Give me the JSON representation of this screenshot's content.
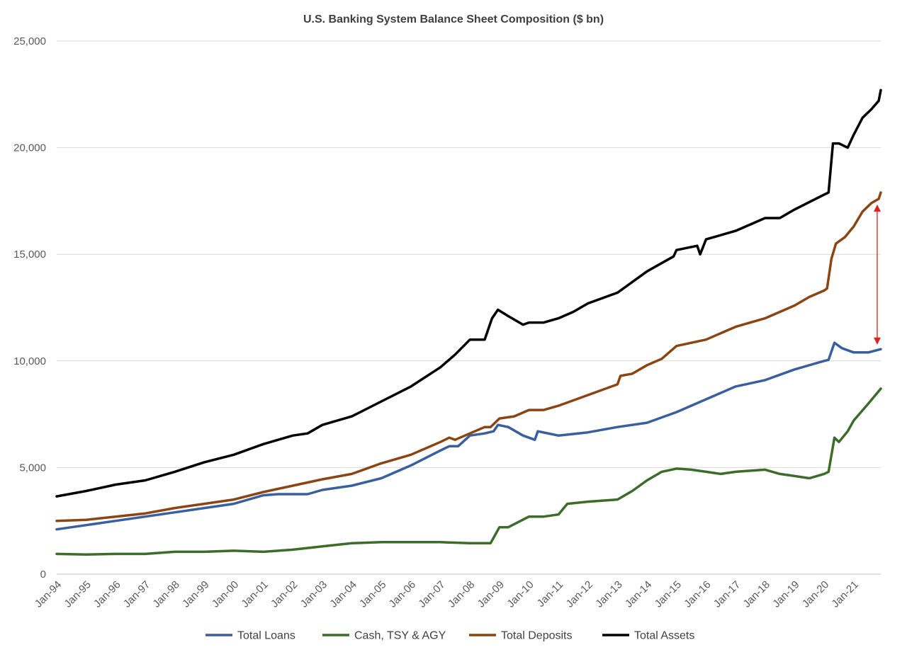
{
  "chart_data": {
    "type": "line",
    "title": "U.S. Banking System Balance Sheet Composition ($ bn)",
    "xlabel": "",
    "ylabel": "",
    "ylim": [
      0,
      25000
    ],
    "yticks": [
      0,
      5000,
      10000,
      15000,
      20000,
      25000
    ],
    "ytick_labels": [
      "0",
      "5,000",
      "10,000",
      "15,000",
      "20,000",
      "25,000"
    ],
    "xlim": [
      1994.0,
      2021.92
    ],
    "xticks": [
      1994,
      1995,
      1996,
      1997,
      1998,
      1999,
      2000,
      2001,
      2002,
      2003,
      2004,
      2005,
      2006,
      2007,
      2008,
      2009,
      2010,
      2011,
      2012,
      2013,
      2014,
      2015,
      2016,
      2017,
      2018,
      2019,
      2020,
      2021
    ],
    "xtick_labels": [
      "Jan-94",
      "Jan-95",
      "Jan-96",
      "Jan-97",
      "Jan-98",
      "Jan-99",
      "Jan-00",
      "Jan-01",
      "Jan-02",
      "Jan-03",
      "Jan-04",
      "Jan-05",
      "Jan-06",
      "Jan-07",
      "Jan-08",
      "Jan-09",
      "Jan-10",
      "Jan-11",
      "Jan-12",
      "Jan-13",
      "Jan-14",
      "Jan-15",
      "Jan-16",
      "Jan-17",
      "Jan-18",
      "Jan-19",
      "Jan-20",
      "Jan-21"
    ],
    "grid": "horizontal",
    "legend_position": "bottom",
    "annotation": {
      "type": "double-arrow",
      "x": 2021.8,
      "y_from": 17300,
      "y_to": 10800,
      "color": "#e0201b"
    },
    "series": [
      {
        "name": "Total Loans",
        "color": "#3a5f9e",
        "points": [
          [
            1994.0,
            2100
          ],
          [
            1995.0,
            2300
          ],
          [
            1996.0,
            2500
          ],
          [
            1997.0,
            2700
          ],
          [
            1998.0,
            2900
          ],
          [
            1999.0,
            3100
          ],
          [
            2000.0,
            3300
          ],
          [
            2001.0,
            3700
          ],
          [
            2001.5,
            3750
          ],
          [
            2002.0,
            3750
          ],
          [
            2002.5,
            3750
          ],
          [
            2003.0,
            3950
          ],
          [
            2004.0,
            4150
          ],
          [
            2005.0,
            4500
          ],
          [
            2006.0,
            5100
          ],
          [
            2007.0,
            5800
          ],
          [
            2007.3,
            6000
          ],
          [
            2007.6,
            6000
          ],
          [
            2008.0,
            6500
          ],
          [
            2008.5,
            6600
          ],
          [
            2008.8,
            6700
          ],
          [
            2008.95,
            7000
          ],
          [
            2009.3,
            6900
          ],
          [
            2009.8,
            6500
          ],
          [
            2010.2,
            6300
          ],
          [
            2010.3,
            6700
          ],
          [
            2011.0,
            6500
          ],
          [
            2012.0,
            6650
          ],
          [
            2013.0,
            6900
          ],
          [
            2014.0,
            7100
          ],
          [
            2015.0,
            7600
          ],
          [
            2016.0,
            8200
          ],
          [
            2017.0,
            8800
          ],
          [
            2018.0,
            9100
          ],
          [
            2019.0,
            9600
          ],
          [
            2020.0,
            10000
          ],
          [
            2020.15,
            10050
          ],
          [
            2020.35,
            10850
          ],
          [
            2020.6,
            10600
          ],
          [
            2021.0,
            10400
          ],
          [
            2021.5,
            10400
          ],
          [
            2021.92,
            10550
          ]
        ]
      },
      {
        "name": "Cash, TSY & AGY",
        "color": "#3d6b2a",
        "points": [
          [
            1994.0,
            950
          ],
          [
            1995.0,
            920
          ],
          [
            1996.0,
            950
          ],
          [
            1997.0,
            950
          ],
          [
            1998.0,
            1050
          ],
          [
            1999.0,
            1050
          ],
          [
            2000.0,
            1100
          ],
          [
            2001.0,
            1050
          ],
          [
            2002.0,
            1150
          ],
          [
            2003.0,
            1300
          ],
          [
            2004.0,
            1450
          ],
          [
            2005.0,
            1500
          ],
          [
            2006.0,
            1500
          ],
          [
            2007.0,
            1500
          ],
          [
            2008.0,
            1450
          ],
          [
            2008.7,
            1450
          ],
          [
            2009.0,
            2200
          ],
          [
            2009.3,
            2200
          ],
          [
            2010.0,
            2700
          ],
          [
            2010.5,
            2700
          ],
          [
            2011.0,
            2800
          ],
          [
            2011.3,
            3300
          ],
          [
            2012.0,
            3400
          ],
          [
            2012.5,
            3450
          ],
          [
            2013.0,
            3500
          ],
          [
            2013.5,
            3900
          ],
          [
            2014.0,
            4400
          ],
          [
            2014.5,
            4800
          ],
          [
            2015.0,
            4950
          ],
          [
            2015.5,
            4900
          ],
          [
            2016.0,
            4800
          ],
          [
            2016.5,
            4700
          ],
          [
            2017.0,
            4800
          ],
          [
            2017.5,
            4850
          ],
          [
            2018.0,
            4900
          ],
          [
            2018.5,
            4700
          ],
          [
            2019.0,
            4600
          ],
          [
            2019.5,
            4500
          ],
          [
            2020.0,
            4700
          ],
          [
            2020.15,
            4800
          ],
          [
            2020.35,
            6400
          ],
          [
            2020.5,
            6200
          ],
          [
            2020.8,
            6700
          ],
          [
            2021.0,
            7200
          ],
          [
            2021.5,
            8000
          ],
          [
            2021.92,
            8700
          ]
        ]
      },
      {
        "name": "Total Deposits",
        "color": "#8b4513",
        "points": [
          [
            1994.0,
            2500
          ],
          [
            1995.0,
            2550
          ],
          [
            1996.0,
            2700
          ],
          [
            1997.0,
            2850
          ],
          [
            1998.0,
            3100
          ],
          [
            1999.0,
            3300
          ],
          [
            2000.0,
            3500
          ],
          [
            2001.0,
            3850
          ],
          [
            2002.0,
            4150
          ],
          [
            2003.0,
            4450
          ],
          [
            2004.0,
            4700
          ],
          [
            2005.0,
            5200
          ],
          [
            2006.0,
            5600
          ],
          [
            2007.0,
            6200
          ],
          [
            2007.3,
            6400
          ],
          [
            2007.5,
            6300
          ],
          [
            2008.0,
            6600
          ],
          [
            2008.5,
            6900
          ],
          [
            2008.7,
            6900
          ],
          [
            2009.0,
            7300
          ],
          [
            2009.5,
            7400
          ],
          [
            2010.0,
            7700
          ],
          [
            2010.5,
            7700
          ],
          [
            2011.0,
            7900
          ],
          [
            2012.0,
            8400
          ],
          [
            2013.0,
            8900
          ],
          [
            2013.1,
            9300
          ],
          [
            2013.5,
            9400
          ],
          [
            2014.0,
            9800
          ],
          [
            2014.5,
            10100
          ],
          [
            2015.0,
            10700
          ],
          [
            2016.0,
            11000
          ],
          [
            2017.0,
            11600
          ],
          [
            2018.0,
            12000
          ],
          [
            2019.0,
            12600
          ],
          [
            2019.5,
            13000
          ],
          [
            2020.0,
            13300
          ],
          [
            2020.1,
            13400
          ],
          [
            2020.25,
            14800
          ],
          [
            2020.4,
            15500
          ],
          [
            2020.7,
            15800
          ],
          [
            2021.0,
            16300
          ],
          [
            2021.3,
            17000
          ],
          [
            2021.6,
            17400
          ],
          [
            2021.85,
            17600
          ],
          [
            2021.92,
            17900
          ]
        ]
      },
      {
        "name": "Total Assets",
        "color": "#000000",
        "points": [
          [
            1994.0,
            3650
          ],
          [
            1995.0,
            3900
          ],
          [
            1996.0,
            4200
          ],
          [
            1997.0,
            4400
          ],
          [
            1998.0,
            4800
          ],
          [
            1999.0,
            5250
          ],
          [
            2000.0,
            5600
          ],
          [
            2001.0,
            6100
          ],
          [
            2002.0,
            6500
          ],
          [
            2002.5,
            6600
          ],
          [
            2003.0,
            7000
          ],
          [
            2004.0,
            7400
          ],
          [
            2005.0,
            8100
          ],
          [
            2006.0,
            8800
          ],
          [
            2007.0,
            9700
          ],
          [
            2007.5,
            10300
          ],
          [
            2008.0,
            11000
          ],
          [
            2008.5,
            11000
          ],
          [
            2008.75,
            12000
          ],
          [
            2008.95,
            12400
          ],
          [
            2009.3,
            12100
          ],
          [
            2009.8,
            11700
          ],
          [
            2010.0,
            11800
          ],
          [
            2010.5,
            11800
          ],
          [
            2011.0,
            12000
          ],
          [
            2011.5,
            12300
          ],
          [
            2012.0,
            12700
          ],
          [
            2013.0,
            13200
          ],
          [
            2014.0,
            14200
          ],
          [
            2014.9,
            14900
          ],
          [
            2015.0,
            15200
          ],
          [
            2015.7,
            15400
          ],
          [
            2015.8,
            15000
          ],
          [
            2016.0,
            15700
          ],
          [
            2017.0,
            16100
          ],
          [
            2018.0,
            16700
          ],
          [
            2018.5,
            16700
          ],
          [
            2019.0,
            17100
          ],
          [
            2020.0,
            17800
          ],
          [
            2020.15,
            17900
          ],
          [
            2020.3,
            20200
          ],
          [
            2020.5,
            20200
          ],
          [
            2020.8,
            20000
          ],
          [
            2021.0,
            20600
          ],
          [
            2021.3,
            21400
          ],
          [
            2021.6,
            21800
          ],
          [
            2021.85,
            22200
          ],
          [
            2021.92,
            22700
          ]
        ]
      }
    ]
  }
}
